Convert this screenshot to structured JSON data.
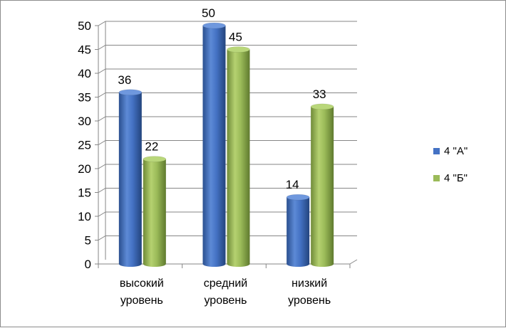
{
  "chart_data": {
    "type": "bar",
    "categories": [
      [
        "высокий",
        "уровень"
      ],
      [
        "средний",
        "уровень"
      ],
      [
        "низкий",
        "уровень"
      ]
    ],
    "series": [
      {
        "name": "4 \"А\"",
        "values": [
          36,
          50,
          14
        ],
        "color": "#4472c4"
      },
      {
        "name": "4 \"Б\"",
        "values": [
          22,
          45,
          33
        ],
        "color": "#9bbb59"
      }
    ],
    "ylim": [
      0,
      50
    ],
    "yticks": [
      "0",
      "5",
      "10",
      "15",
      "20",
      "25",
      "30",
      "35",
      "40",
      "45",
      "50"
    ],
    "grid": true,
    "legend": "right",
    "style": "3d-cylinder"
  }
}
